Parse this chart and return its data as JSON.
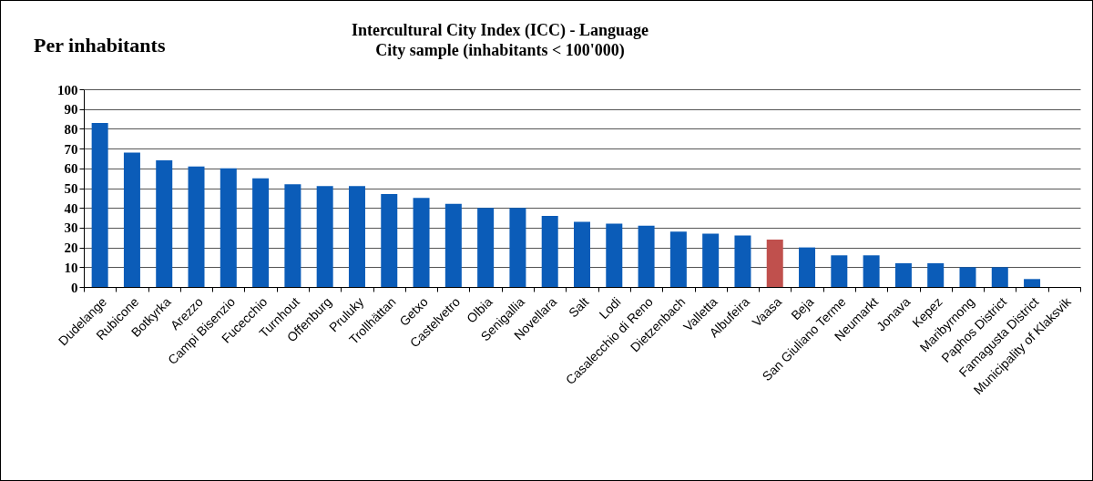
{
  "chart_data": {
    "type": "bar",
    "title": [
      "Intercultural City Index (ICC) - Language",
      "City sample (inhabitants < 100'000)"
    ],
    "annotations": [
      "Per inhabitants"
    ],
    "categories": [
      "Dudelange",
      "Rubicone",
      "Botkyrka",
      "Arezzo",
      "Campi Bisenzio",
      "Fucecchio",
      "Turnhout",
      "Offenburg",
      "Pruluky",
      "Trollhättan",
      "Getxo",
      "Castelvetro",
      "Olbia",
      "Senigallia",
      "Novellara",
      "Salt",
      "Lodi",
      "Casalecchio di Reno",
      "Dietzenbach",
      "Valletta",
      "Albufeira",
      "Vaasa",
      "Beja",
      "San Giuliano Terme",
      "Neumarkt",
      "Jonava",
      "Kepez",
      "Maribyrnong",
      "Paphos District",
      "Famagusta District",
      "Municipality of Klaksvik"
    ],
    "values": [
      83,
      68,
      64,
      61,
      60,
      55,
      52,
      51,
      51,
      47,
      45,
      42,
      40,
      40,
      36,
      33,
      32,
      31,
      28,
      27,
      26,
      24,
      20,
      16,
      16,
      12,
      12,
      10,
      10,
      4,
      0
    ],
    "colors": [
      "#0b5cb8",
      "#0b5cb8",
      "#0b5cb8",
      "#0b5cb8",
      "#0b5cb8",
      "#0b5cb8",
      "#0b5cb8",
      "#0b5cb8",
      "#0b5cb8",
      "#0b5cb8",
      "#0b5cb8",
      "#0b5cb8",
      "#0b5cb8",
      "#0b5cb8",
      "#0b5cb8",
      "#0b5cb8",
      "#0b5cb8",
      "#0b5cb8",
      "#0b5cb8",
      "#0b5cb8",
      "#0b5cb8",
      "#c0504d",
      "#0b5cb8",
      "#0b5cb8",
      "#0b5cb8",
      "#0b5cb8",
      "#0b5cb8",
      "#0b5cb8",
      "#0b5cb8",
      "#0b5cb8",
      "#0b5cb8"
    ],
    "ylim": [
      0,
      100
    ],
    "yticks": [
      0,
      10,
      20,
      30,
      40,
      50,
      60,
      70,
      80,
      90,
      100
    ],
    "grid": "y"
  }
}
